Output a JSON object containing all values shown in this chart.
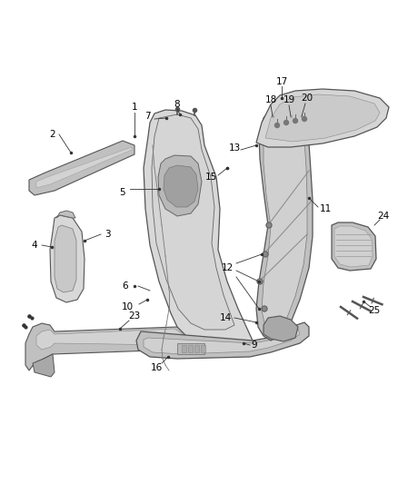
{
  "bg_color": "#ffffff",
  "line_color": "#555555",
  "label_color": "#000000",
  "fig_width": 4.38,
  "fig_height": 5.33,
  "dpi": 100
}
